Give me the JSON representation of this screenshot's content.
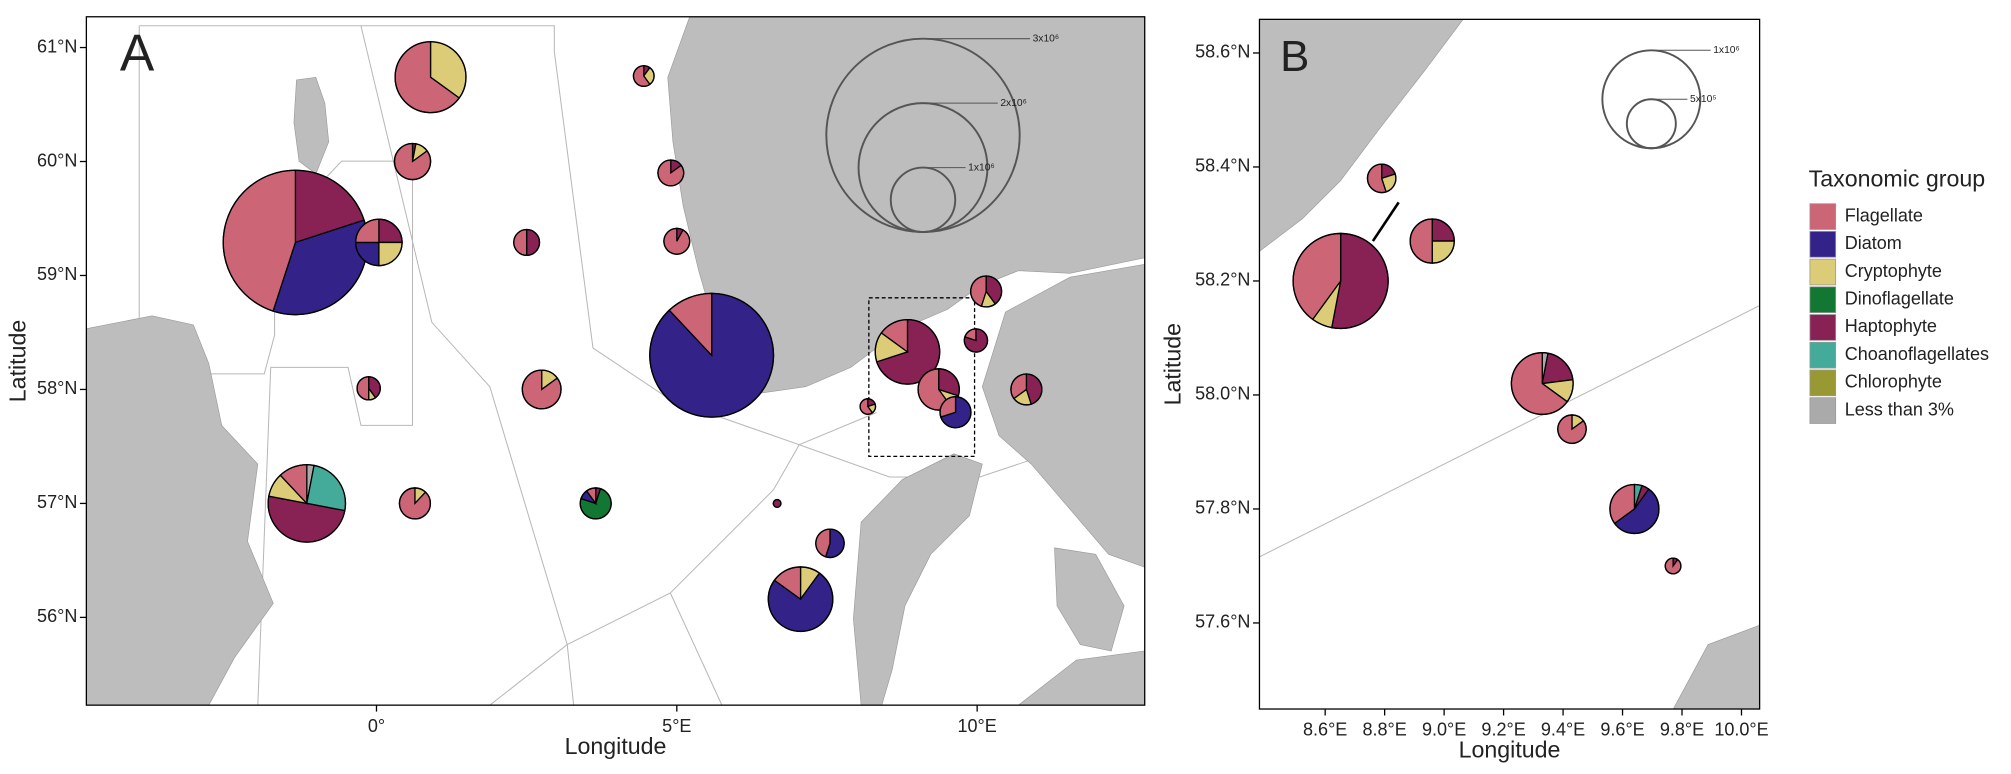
{
  "groups": {
    "title": "Taxonomic group",
    "names": [
      "Flagellate",
      "Diatom",
      "Cryptophyte",
      "Dinoflagellate",
      "Haptophyte",
      "Choanoflagellates",
      "Chlorophyte",
      "Less than 3%"
    ],
    "colors": [
      "#cc6677",
      "#332288",
      "#ddcc77",
      "#117733",
      "#882255",
      "#44aa99",
      "#999933",
      "#aaaaaa"
    ]
  },
  "panels": [
    {
      "label": "A",
      "x_label": "Longitude",
      "y_label": "Latitude",
      "xlim": [
        -4.83,
        12.79
      ],
      "ylim": [
        55.23,
        61.27
      ],
      "xticks": [
        {
          "value": 0,
          "label": "0°"
        },
        {
          "value": 5,
          "label": "5°E"
        },
        {
          "value": 10,
          "label": "10°E"
        }
      ],
      "yticks": [
        {
          "value": 56,
          "label": "56°N"
        },
        {
          "value": 57,
          "label": "57°N"
        },
        {
          "value": 58,
          "label": "58°N"
        },
        {
          "value": 59,
          "label": "59°N"
        },
        {
          "value": 60,
          "label": "60°N"
        },
        {
          "value": 61,
          "label": "61°N"
        }
      ],
      "size_legend": [
        {
          "value": 3000000,
          "label": "3x10⁶"
        },
        {
          "value": 2000000,
          "label": "2x10⁶"
        },
        {
          "value": 1000000,
          "label": "1x10⁶"
        }
      ],
      "pies": [
        {
          "lon": 0.9,
          "lat": 60.74,
          "abundance": 1100000,
          "fractions": [
            65,
            0,
            35,
            0,
            0,
            0,
            0,
            0
          ]
        },
        {
          "lon": 0.6,
          "lat": 60.0,
          "abundance": 560000,
          "fractions": [
            85,
            0,
            12,
            0,
            3,
            0,
            0,
            0
          ]
        },
        {
          "lon": -1.35,
          "lat": 59.29,
          "abundance": 2240000,
          "fractions": [
            45,
            35,
            0,
            0,
            20,
            0,
            0,
            0
          ]
        },
        {
          "lon": 0.04,
          "lat": 59.29,
          "abundance": 720000,
          "fractions": [
            25,
            25,
            25,
            0,
            25,
            0,
            0,
            0
          ]
        },
        {
          "lon": 2.5,
          "lat": 59.29,
          "abundance": 400000,
          "fractions": [
            50,
            0,
            0,
            0,
            50,
            0,
            0,
            0
          ]
        },
        {
          "lon": 4.45,
          "lat": 60.75,
          "abundance": 320000,
          "fractions": [
            60,
            0,
            30,
            0,
            10,
            0,
            0,
            0
          ]
        },
        {
          "lon": 4.9,
          "lat": 59.9,
          "abundance": 400000,
          "fractions": [
            85,
            0,
            0,
            0,
            15,
            0,
            0,
            0
          ]
        },
        {
          "lon": 5.0,
          "lat": 59.3,
          "abundance": 400000,
          "fractions": [
            92,
            0,
            0,
            0,
            8,
            0,
            0,
            0
          ]
        },
        {
          "lon": 5.58,
          "lat": 58.3,
          "abundance": 1920000,
          "fractions": [
            12,
            88,
            0,
            0,
            0,
            0,
            0,
            0
          ]
        },
        {
          "lon": -0.13,
          "lat": 58.01,
          "abundance": 360000,
          "fractions": [
            50,
            0,
            10,
            0,
            40,
            0,
            0,
            0
          ]
        },
        {
          "lon": 2.75,
          "lat": 58.0,
          "abundance": 600000,
          "fractions": [
            85,
            0,
            15,
            0,
            0,
            0,
            0,
            0
          ]
        },
        {
          "lon": -1.16,
          "lat": 57.0,
          "abundance": 1200000,
          "fractions": [
            12,
            0,
            10,
            0,
            50,
            25,
            0,
            3
          ]
        },
        {
          "lon": 0.64,
          "lat": 57.0,
          "abundance": 480000,
          "fractions": [
            88,
            0,
            12,
            0,
            0,
            0,
            0,
            0
          ]
        },
        {
          "lon": 3.65,
          "lat": 57.0,
          "abundance": 480000,
          "fractions": [
            10,
            10,
            0,
            75,
            5,
            0,
            0,
            0
          ]
        },
        {
          "lon": 6.67,
          "lat": 57.0,
          "abundance": 120000,
          "fractions": [
            0,
            0,
            0,
            0,
            100,
            0,
            0,
            0
          ]
        },
        {
          "lon": 7.55,
          "lat": 56.65,
          "abundance": 440000,
          "fractions": [
            45,
            55,
            0,
            0,
            0,
            0,
            0,
            0
          ]
        },
        {
          "lon": 7.06,
          "lat": 56.16,
          "abundance": 1000000,
          "fractions": [
            15,
            75,
            10,
            0,
            0,
            0,
            0,
            0
          ]
        },
        {
          "lon": 8.84,
          "lat": 58.33,
          "abundance": 1000000,
          "fractions": [
            15,
            0,
            15,
            0,
            70,
            0,
            0,
            0
          ]
        },
        {
          "lon": 9.36,
          "lat": 58.0,
          "abundance": 640000,
          "fractions": [
            60,
            0,
            10,
            0,
            30,
            0,
            0,
            0
          ]
        },
        {
          "lon": 9.64,
          "lat": 57.8,
          "abundance": 480000,
          "fractions": [
            30,
            70,
            0,
            0,
            0,
            0,
            0,
            0
          ]
        },
        {
          "lon": 8.18,
          "lat": 57.85,
          "abundance": 240000,
          "fractions": [
            60,
            0,
            20,
            0,
            20,
            0,
            0,
            0
          ]
        },
        {
          "lon": 9.98,
          "lat": 58.43,
          "abundance": 360000,
          "fractions": [
            20,
            0,
            0,
            0,
            80,
            0,
            0,
            0
          ]
        },
        {
          "lon": 10.15,
          "lat": 58.86,
          "abundance": 480000,
          "fractions": [
            45,
            0,
            15,
            0,
            40,
            0,
            0,
            0
          ]
        },
        {
          "lon": 10.82,
          "lat": 58.0,
          "abundance": 480000,
          "fractions": [
            35,
            0,
            20,
            0,
            45,
            0,
            0,
            0
          ]
        }
      ]
    },
    {
      "label": "B",
      "x_label": "Longitude",
      "y_label": "Latitude",
      "xlim": [
        8.379,
        10.061
      ],
      "ylim": [
        57.449,
        58.659
      ],
      "xticks": [
        {
          "value": 8.6,
          "label": "8.6°E"
        },
        {
          "value": 8.8,
          "label": "8.8°E"
        },
        {
          "value": 9.0,
          "label": "9.0°E"
        },
        {
          "value": 9.2,
          "label": "9.2°E"
        },
        {
          "value": 9.4,
          "label": "9.4°E"
        },
        {
          "value": 9.6,
          "label": "9.6°E"
        },
        {
          "value": 9.8,
          "label": "9.8°E"
        },
        {
          "value": 10.0,
          "label": "10.0°E"
        }
      ],
      "yticks": [
        {
          "value": 57.6,
          "label": "57.6°N"
        },
        {
          "value": 57.8,
          "label": "57.8°N"
        },
        {
          "value": 58.0,
          "label": "58.0°N"
        },
        {
          "value": 58.2,
          "label": "58.2°N"
        },
        {
          "value": 58.4,
          "label": "58.4°N"
        },
        {
          "value": 58.6,
          "label": "58.6°N"
        }
      ],
      "size_legend": [
        {
          "value": 1000000,
          "label": "1x10⁶"
        },
        {
          "value": 500000,
          "label": "5x10⁵"
        }
      ],
      "pies": [
        {
          "lon": 8.652,
          "lat": 58.2,
          "abundance": 970000,
          "fractions": [
            40,
            0,
            7,
            0,
            53,
            0,
            0,
            0
          ]
        },
        {
          "lon": 8.79,
          "lat": 58.38,
          "abundance": 290000,
          "fractions": [
            55,
            0,
            25,
            0,
            20,
            0,
            0,
            0
          ]
        },
        {
          "lon": 8.96,
          "lat": 58.27,
          "abundance": 450000,
          "fractions": [
            50,
            0,
            25,
            0,
            25,
            0,
            0,
            0
          ]
        },
        {
          "lon": 9.33,
          "lat": 58.02,
          "abundance": 630000,
          "fractions": [
            65,
            0,
            12,
            0,
            20,
            0,
            0,
            3
          ]
        },
        {
          "lon": 9.43,
          "lat": 57.94,
          "abundance": 290000,
          "fractions": [
            85,
            0,
            15,
            0,
            0,
            0,
            0,
            0
          ]
        },
        {
          "lon": 9.64,
          "lat": 57.8,
          "abundance": 500000,
          "fractions": [
            35,
            55,
            0,
            0,
            5,
            5,
            0,
            0
          ]
        },
        {
          "lon": 9.77,
          "lat": 57.7,
          "abundance": 160000,
          "fractions": [
            90,
            0,
            0,
            0,
            10,
            0,
            0,
            0
          ]
        }
      ]
    }
  ]
}
